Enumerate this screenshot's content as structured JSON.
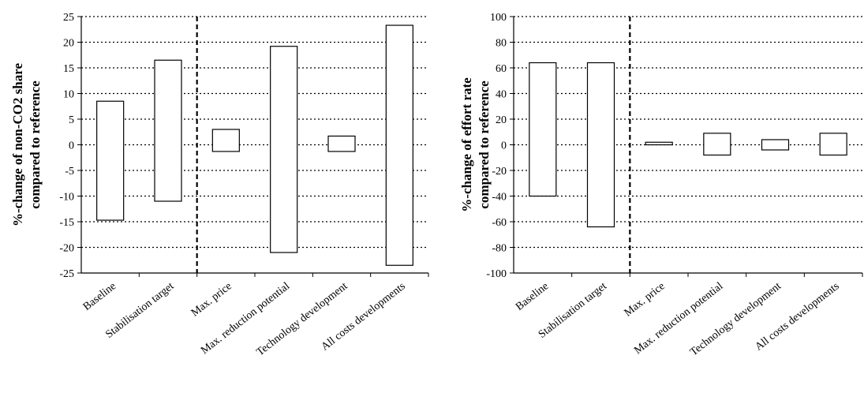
{
  "chart_data": [
    {
      "type": "bar",
      "style": "floating range bars",
      "ylabel_lines": [
        "%-change of non-CO2 share",
        "compared to reference"
      ],
      "categories": [
        "Baseline",
        "Stabilisation target",
        "Max. price",
        "Max. reduction potential",
        "Technology development",
        "All costs developments"
      ],
      "series": [
        {
          "values_low": [
            -14.7,
            -11.0,
            -1.3,
            -21.0,
            -1.3,
            -23.5
          ],
          "values_high": [
            8.5,
            16.5,
            3.0,
            19.2,
            1.7,
            23.3
          ]
        }
      ],
      "ylim": [
        -25,
        25
      ],
      "yticks": [
        25,
        20,
        15,
        10,
        5,
        0,
        -5,
        -10,
        -15,
        -20,
        -25
      ],
      "grid": "horizontal dotted",
      "separator_after_category": 1,
      "legend": "none"
    },
    {
      "type": "bar",
      "style": "floating range bars",
      "ylabel_lines": [
        "%-change of effort rate",
        "compared to reference"
      ],
      "categories": [
        "Baseline",
        "Stabilisation target",
        "Max. price",
        "Max. reduction potential",
        "Technology development",
        "All costs developments"
      ],
      "series": [
        {
          "values_low": [
            -40,
            -64,
            0,
            -8,
            -4,
            -8
          ],
          "values_high": [
            64,
            64,
            2,
            9,
            4,
            9
          ]
        }
      ],
      "ylim": [
        -100,
        100
      ],
      "yticks": [
        100,
        80,
        60,
        40,
        20,
        0,
        -20,
        -40,
        -60,
        -80,
        -100
      ],
      "grid": "horizontal dotted",
      "separator_after_category": 1,
      "legend": "none"
    }
  ]
}
